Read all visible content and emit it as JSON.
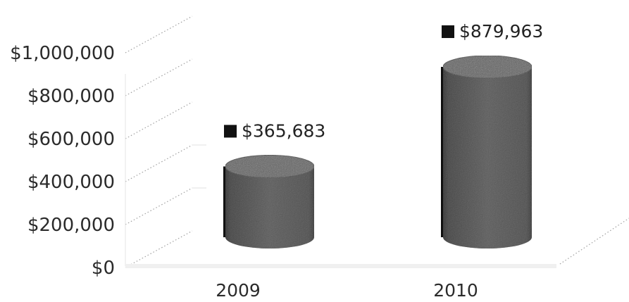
{
  "chart_data": {
    "type": "bar",
    "title": "",
    "xlabel": "",
    "ylabel": "",
    "categories": [
      "2009",
      "2010"
    ],
    "series": [
      {
        "values": [
          365683,
          879963
        ]
      }
    ],
    "data_labels": [
      "$365,683",
      "$879,963"
    ],
    "yticks": [
      0,
      200000,
      400000,
      600000,
      800000,
      1000000
    ],
    "ytick_labels": [
      "$0",
      "$200,000",
      "$400,000",
      "$600,000",
      "$800,000",
      "$1,000,000"
    ],
    "ylim": [
      0,
      1000000
    ],
    "grid": false,
    "legend": "none",
    "bar_shape": "cylinder",
    "bar_color": "#575757",
    "label_marker_color": "#111111"
  }
}
